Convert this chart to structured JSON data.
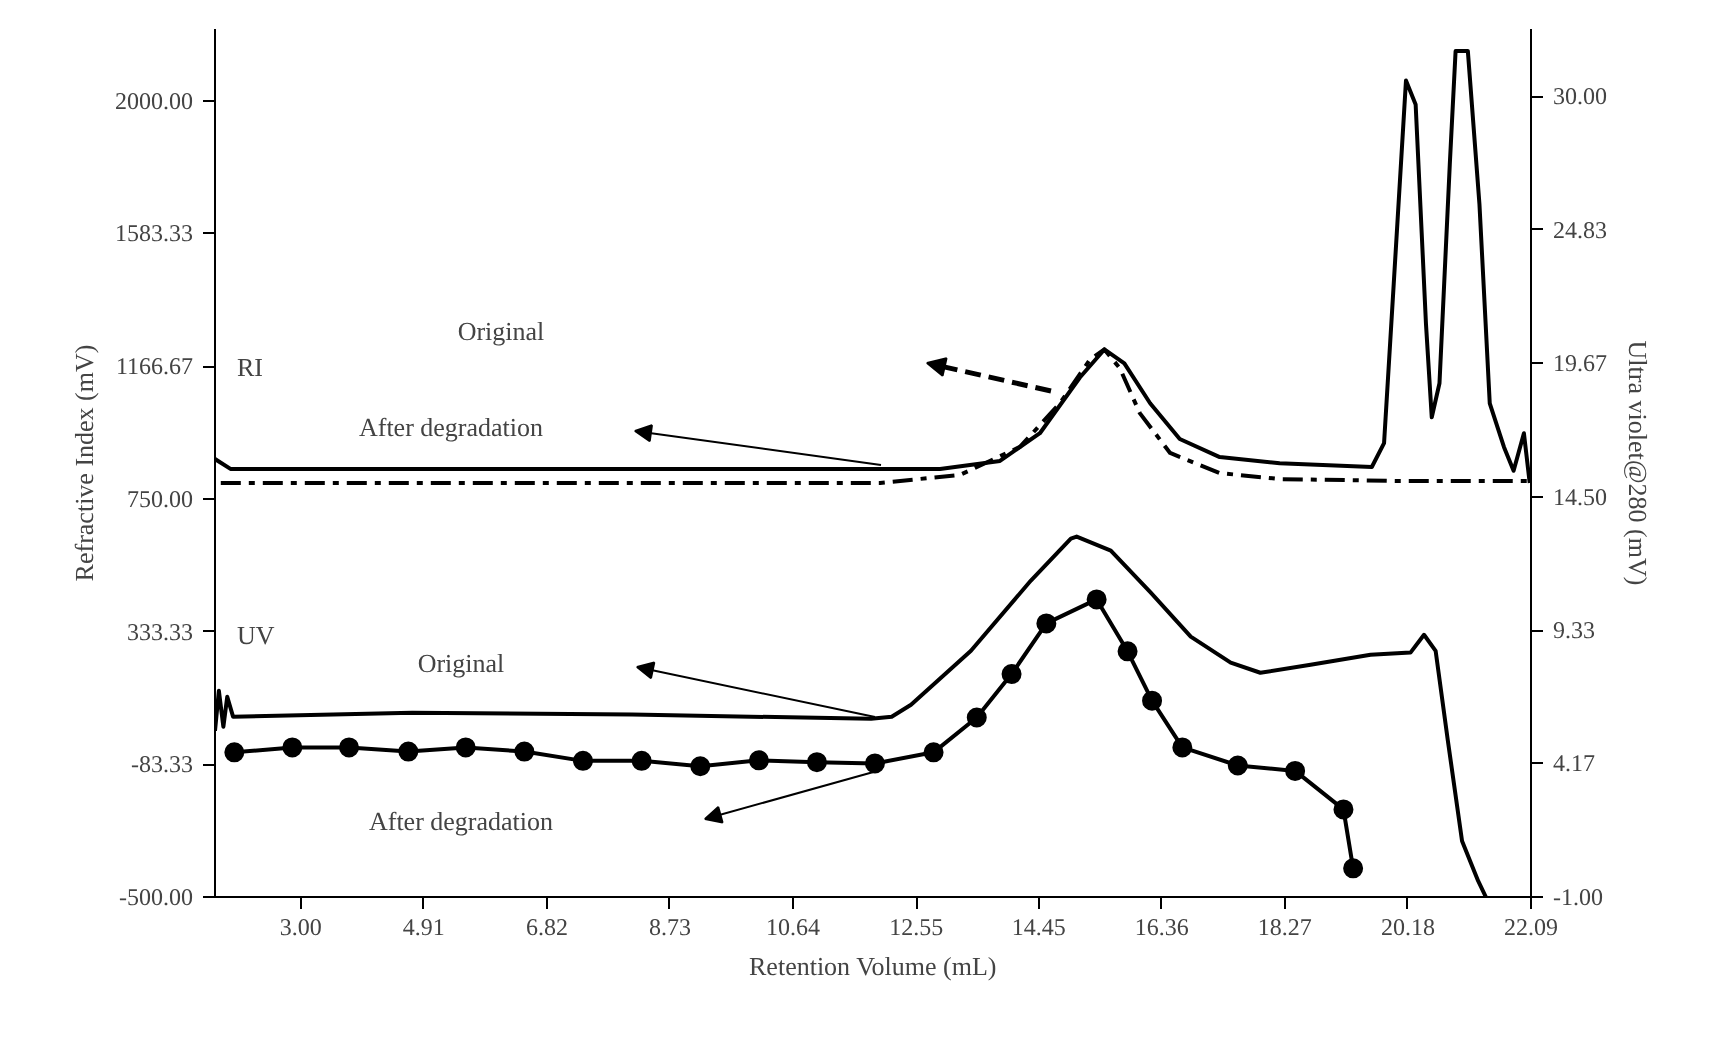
{
  "chart_data": {
    "type": "line",
    "xlabel": "Retention Volume (mL)",
    "ylabel": "Refractive Index (mV)",
    "y2label": "Ultra violet@280 (mV)",
    "xlim": [
      1.67,
      22.09
    ],
    "xticks": [
      {
        "value": 3,
        "label": "3.00"
      },
      {
        "value": 4.91,
        "label": "4.91"
      },
      {
        "value": 6.82,
        "label": "6.82"
      },
      {
        "value": 8.73,
        "label": "8.73"
      },
      {
        "value": 10.64,
        "label": "10.64"
      },
      {
        "value": 12.55,
        "label": "12.55"
      },
      {
        "value": 14.45,
        "label": "14.45"
      },
      {
        "value": 16.36,
        "label": "16.36"
      },
      {
        "value": 18.27,
        "label": "18.27"
      },
      {
        "value": 20.18,
        "label": "20.18"
      },
      {
        "value": 22.09,
        "label": "22.09"
      }
    ],
    "ylim": [
      -500,
      2225
    ],
    "yticks": [
      {
        "value": -500,
        "label": "-500.00"
      },
      {
        "value": -83.33,
        "label": "-83.33"
      },
      {
        "value": 333.33,
        "label": "333.33"
      },
      {
        "value": 750,
        "label": "750.00"
      },
      {
        "value": 1166.67,
        "label": "1166.67"
      },
      {
        "value": 1583.33,
        "label": "1583.33"
      },
      {
        "value": 2000,
        "label": "2000.00"
      }
    ],
    "y2lim": [
      -1,
      32.6
    ],
    "y2ticks": [
      {
        "value": -1,
        "label": "-1.00"
      },
      {
        "value": 4.17,
        "label": "4.17"
      },
      {
        "value": 9.33,
        "label": "9.33"
      },
      {
        "value": 14.5,
        "label": "14.50"
      },
      {
        "value": 19.67,
        "label": "19.67"
      },
      {
        "value": 24.83,
        "label": "24.83"
      },
      {
        "value": 30,
        "label": "30.00"
      }
    ],
    "grid": false,
    "series": [
      {
        "color": "#000000",
        "line_style": "solid",
        "marker": "none",
        "x": [
          1.67,
          1.91,
          7.65,
          12.92,
          13.85,
          14.47,
          15.09,
          15.47,
          15.78,
          16.18,
          16.64,
          17.26,
          18.19,
          19.62,
          19.81,
          19.96,
          20.15,
          20.3,
          20.46,
          20.55,
          20.67,
          20.83,
          20.92,
          21.11,
          21.29,
          21.45,
          21.67,
          21.82,
          21.98,
          22.07
        ],
        "values": [
          875,
          844,
          844,
          844,
          869,
          956,
          1131,
          1219,
          1175,
          1050,
          938,
          881,
          862,
          850,
          925,
          1425,
          2063,
          1988,
          1300,
          1006,
          1113,
          1800,
          2156,
          2156,
          1675,
          1050,
          913,
          838,
          956,
          800
        ]
      },
      {
        "color": "#000000",
        "line_style": "dashed",
        "marker": "none",
        "x": [
          1.76,
          11.99,
          13.23,
          14.16,
          14.78,
          15.25,
          15.47,
          15.71,
          16.02,
          16.49,
          17.26,
          18.19,
          20.05,
          22.07
        ],
        "values": [
          800,
          800,
          825,
          913,
          1050,
          1188,
          1219,
          1160,
          1019,
          894,
          831,
          812,
          806,
          806
        ]
      },
      {
        "color": "#000000",
        "line_style": "solid",
        "marker": "none",
        "axis": "y2",
        "x": [
          1.67,
          1.73,
          1.8,
          1.86,
          1.95,
          4.73,
          8.14,
          11.85,
          12.17,
          12.47,
          13.4,
          14.33,
          14.95,
          15.04,
          15.57,
          16.19,
          16.81,
          17.43,
          17.89,
          18.67,
          19.6,
          20.22,
          20.43,
          20.61,
          20.8,
          21.02,
          21.27,
          21.39
        ],
        "values": [
          5.43,
          6.98,
          5.59,
          6.75,
          5.98,
          6.13,
          6.06,
          5.9,
          5.98,
          6.44,
          8.53,
          11.25,
          12.87,
          12.95,
          12.41,
          10.78,
          9.08,
          8.07,
          7.68,
          7.99,
          8.38,
          8.46,
          9.15,
          8.53,
          5.05,
          1.17,
          -0.38,
          -1
        ]
      },
      {
        "color": "#000000",
        "line_style": "solid",
        "marker": "circle",
        "axis": "y2",
        "x": [
          1.97,
          2.87,
          3.75,
          4.67,
          5.56,
          6.47,
          7.38,
          8.29,
          9.2,
          10.11,
          11.01,
          11.91,
          12.82,
          13.49,
          14.03,
          14.57,
          15.35,
          15.83,
          16.21,
          16.68,
          17.54,
          18.43,
          19.18,
          19.33
        ],
        "values": [
          4.6,
          4.79,
          4.79,
          4.63,
          4.79,
          4.63,
          4.27,
          4.27,
          4.06,
          4.29,
          4.22,
          4.17,
          4.6,
          5.95,
          7.63,
          9.59,
          10.52,
          8.51,
          6.6,
          4.79,
          4.09,
          3.88,
          2.39,
          0.11
        ]
      }
    ],
    "annotations": [
      "RI",
      "UV",
      "Original",
      "After degradation",
      "Original",
      "After degradation"
    ]
  }
}
